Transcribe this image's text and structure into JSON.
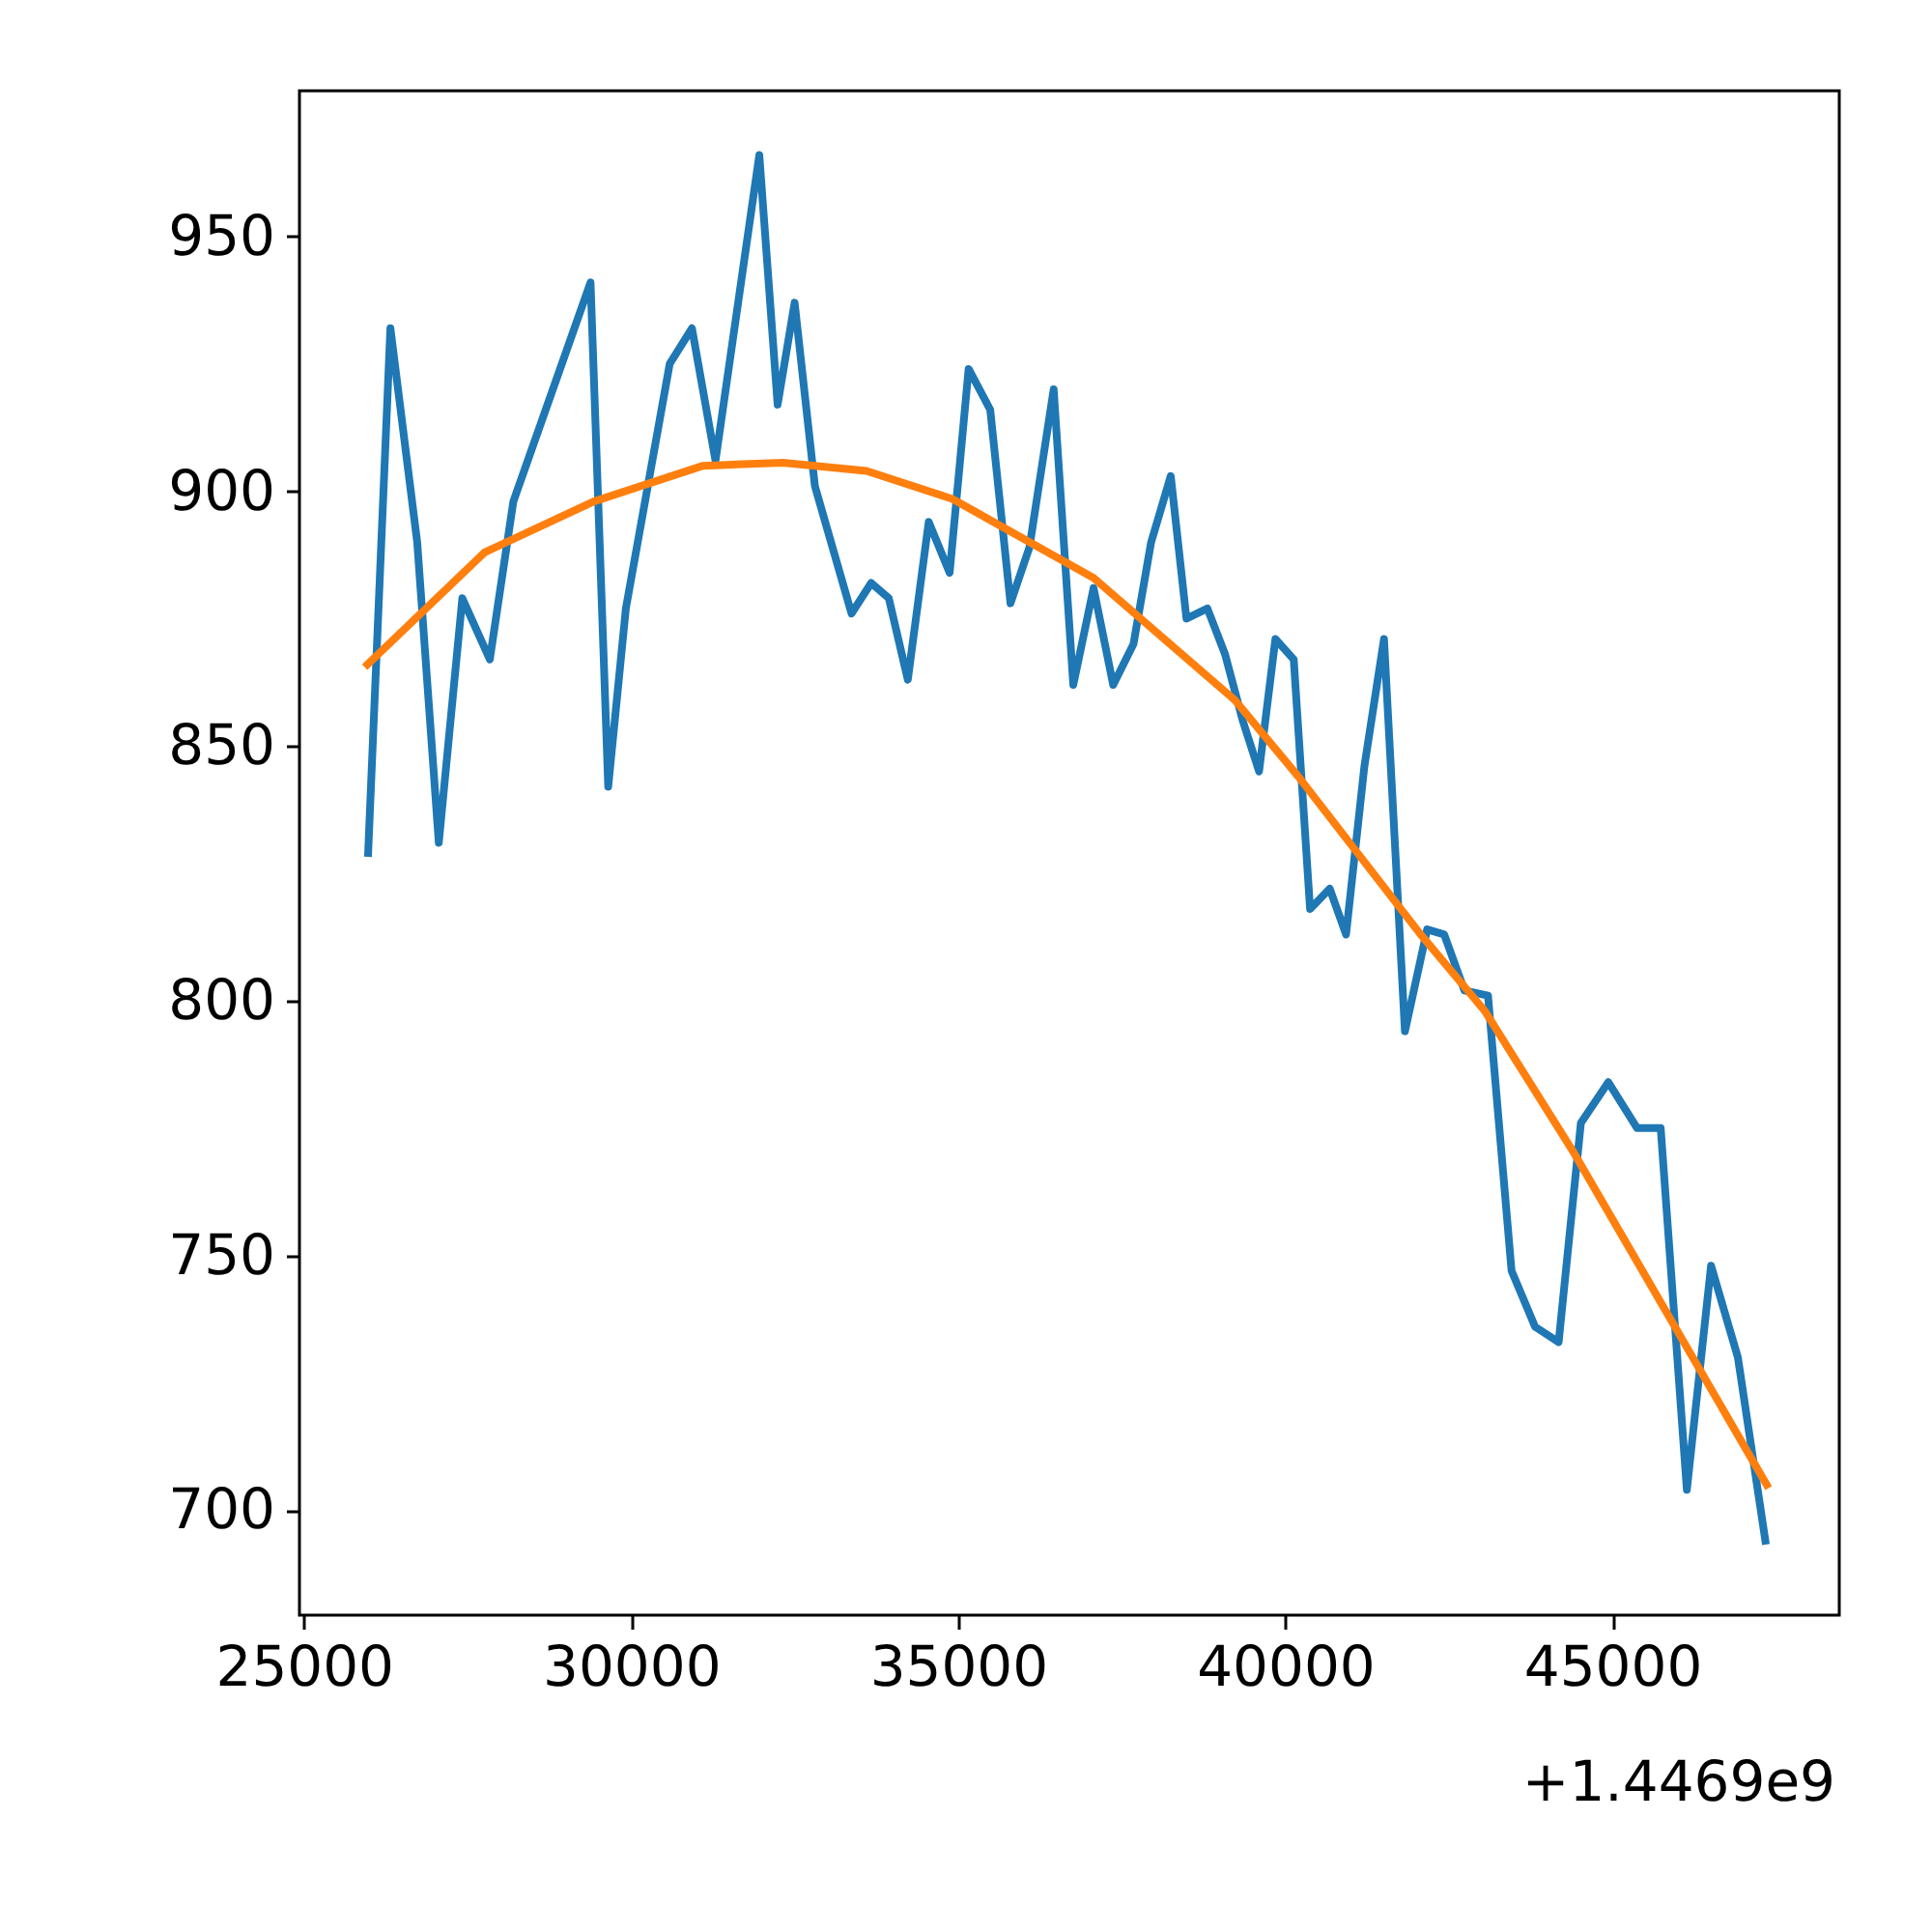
{
  "chart_data": {
    "type": "line",
    "xlim": [
      24930,
      48470
    ],
    "ylim": [
      679.4,
      978.6
    ],
    "xticks": [
      25000,
      30000,
      35000,
      40000,
      45000
    ],
    "yticks": [
      700,
      750,
      800,
      850,
      900,
      950
    ],
    "annotations": [
      "+1.4469e9"
    ],
    "grid": false,
    "legend": false,
    "line_style": "solid",
    "series": [
      {
        "type": "line",
        "color": "#1f77b4",
        "x": [
          25980,
          26320,
          26730,
          27060,
          27420,
          27840,
          28200,
          29380,
          29650,
          29920,
          30590,
          30930,
          31290,
          31960,
          32240,
          32500,
          32810,
          33370,
          33670,
          33940,
          34230,
          34550,
          34870,
          35160,
          35490,
          35800,
          36090,
          36460,
          36760,
          37070,
          37370,
          37680,
          37950,
          38250,
          38490,
          38810,
          39080,
          39350,
          39600,
          39850,
          40130,
          40380,
          40680,
          40930,
          41210,
          41510,
          41830,
          42170,
          42430,
          42740,
          43100,
          43460,
          43820,
          44180,
          44520,
          44940,
          45380,
          45740,
          46140,
          46510,
          46920,
          47340
        ],
        "values": [
          829,
          932,
          890,
          831,
          879,
          867,
          898,
          941,
          842,
          877,
          925,
          932,
          906,
          966,
          917,
          937,
          901,
          876,
          882,
          879,
          863,
          894,
          884,
          924,
          916,
          878,
          889,
          920,
          862,
          881,
          862,
          870,
          890,
          903,
          875,
          877,
          868,
          855,
          845,
          871,
          867,
          818,
          822,
          813,
          846,
          871,
          794,
          814,
          813,
          802,
          801,
          747,
          736,
          733,
          776,
          784,
          775,
          775,
          704,
          748,
          730,
          694
        ]
      },
      {
        "type": "line",
        "color": "#ff7f0e",
        "x": [
          25970,
          27760,
          29430,
          31100,
          32320,
          33600,
          34910,
          37070,
          39230,
          40200,
          42070,
          43050,
          44420,
          47360
        ],
        "values": [
          866,
          888,
          898,
          905,
          905.6,
          904,
          898.5,
          883,
          859,
          844,
          813,
          798,
          770,
          705
        ]
      }
    ]
  }
}
